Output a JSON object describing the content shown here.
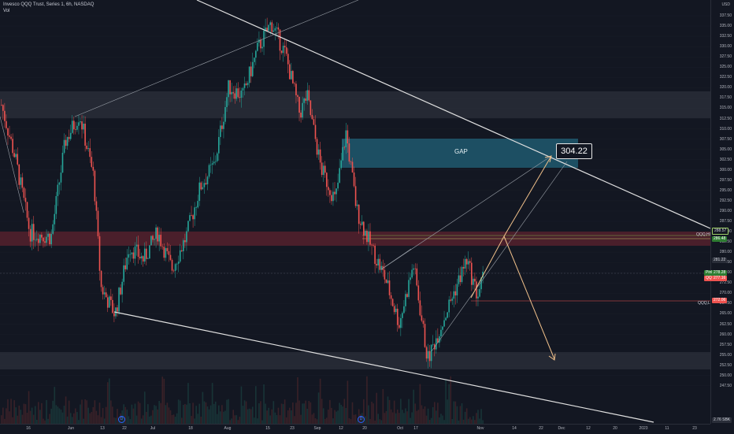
{
  "header": {
    "symbol_line": "Invesco QQQ Trust, Series 1, 6h, NASDAQ",
    "volume_label": "Vol"
  },
  "price_axis": {
    "currency": "USD",
    "ticks": [
      "337.50",
      "335.00",
      "332.50",
      "330.00",
      "327.50",
      "325.00",
      "322.50",
      "320.00",
      "317.50",
      "315.00",
      "312.50",
      "310.00",
      "307.50",
      "305.00",
      "302.50",
      "300.00",
      "297.50",
      "295.00",
      "292.50",
      "290.00",
      "287.50",
      "285.00",
      "282.50",
      "280.00",
      "277.50",
      "275.00",
      "272.50",
      "270.00",
      "267.50",
      "265.00",
      "262.50",
      "260.00",
      "257.50",
      "255.00",
      "252.50",
      "250.00",
      "247.50"
    ]
  },
  "time_axis": {
    "labels": [
      "16",
      "Jun",
      "13",
      "22",
      "Jul",
      "18",
      "Aug",
      "15",
      "23",
      "Sep",
      "12",
      "20",
      "Oct",
      "17",
      "Nov",
      "14",
      "22",
      "Dec",
      "12",
      "20",
      "2023",
      "11",
      "23"
    ]
  },
  "annotations": {
    "gap_label": "GAP",
    "target_price": "304.22",
    "qqq_high_label": "QQQ,HIGH",
    "qqq_low_label": "QQQ,LOW"
  },
  "price_tags": {
    "t1": "288.57",
    "t2": "286.48",
    "t3": "281.22",
    "t4_name": "Pink",
    "t4": "278.28",
    "t5_name": "QQQ",
    "t5": "277.16",
    "t6": "272.06",
    "t7": "2.76 SBK"
  },
  "events": {
    "icon_glyph": "D"
  },
  "colors": {
    "background": "#131722",
    "up": "#26a69a",
    "down": "#ef5350",
    "gap_box": "#1d4f63",
    "resistance_band": "#4a1f2b",
    "grey_band": "#2a2e39",
    "target_arrow": "#f0c08a",
    "trendline": "#e0e0e0"
  },
  "chart_data": {
    "type": "candlestick",
    "interval": "6h",
    "y_range": [
      246,
      339
    ],
    "overlays": {
      "gap_zone": [
        303,
        309
      ],
      "resistance_zone": [
        286,
        289
      ],
      "upper_grey_zone": [
        314.5,
        320.5
      ],
      "lower_grey_zone": [
        256,
        260
      ]
    },
    "path_points": [
      [
        0,
        316
      ],
      [
        0.02,
        304
      ],
      [
        0.04,
        288
      ],
      [
        0.07,
        287
      ],
      [
        0.09,
        308
      ],
      [
        0.11,
        314
      ],
      [
        0.13,
        300
      ],
      [
        0.14,
        276
      ],
      [
        0.16,
        270
      ],
      [
        0.18,
        285
      ],
      [
        0.2,
        282
      ],
      [
        0.22,
        288
      ],
      [
        0.24,
        280
      ],
      [
        0.26,
        287
      ],
      [
        0.28,
        298
      ],
      [
        0.3,
        303
      ],
      [
        0.32,
        320
      ],
      [
        0.34,
        318
      ],
      [
        0.36,
        328
      ],
      [
        0.38,
        334
      ],
      [
        0.4,
        327
      ],
      [
        0.42,
        314
      ],
      [
        0.43,
        318
      ],
      [
        0.45,
        302
      ],
      [
        0.47,
        295
      ],
      [
        0.485,
        310
      ],
      [
        0.5,
        293
      ],
      [
        0.52,
        285
      ],
      [
        0.54,
        278
      ],
      [
        0.56,
        268
      ],
      [
        0.58,
        281
      ],
      [
        0.6,
        260
      ],
      [
        0.62,
        268
      ],
      [
        0.64,
        276
      ],
      [
        0.655,
        282
      ],
      [
        0.67,
        274
      ],
      [
        0.68,
        279
      ]
    ]
  }
}
